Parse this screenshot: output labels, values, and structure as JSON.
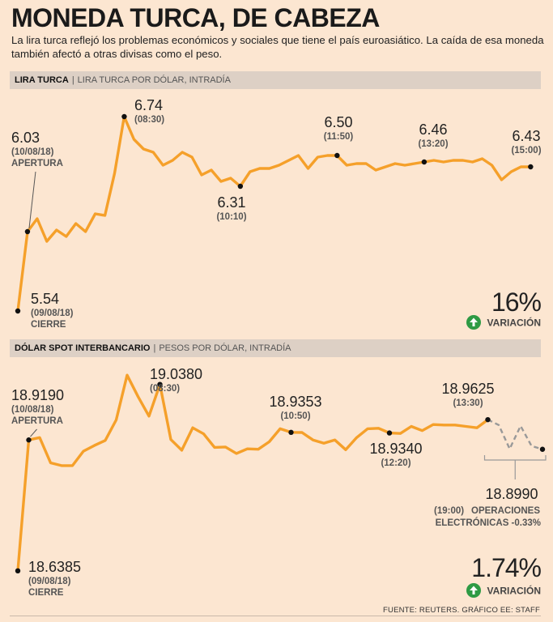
{
  "title": "MONEDA TURCA, DE CABEZA",
  "subtitle": "La lira turca reflejó los problemas económicos y sociales que tiene el país euroasiático. La caída de esa moneda también afectó a otras divisas como el peso.",
  "source": "FUENTE: REUTERS. GRÁFICO EE: STAFF",
  "colors": {
    "line": "#f5a02a",
    "dash": "#999999",
    "up": "#2e9a44",
    "band": "#ddd0c5"
  },
  "chart_data": [
    {
      "type": "line",
      "title": "LIRA TURCA",
      "unit_label": "LIRA TURCA POR DÓLAR, INTRADÍA",
      "ylim": [
        5.5,
        6.8
      ],
      "values": [
        5.54,
        6.03,
        6.11,
        5.97,
        6.04,
        6.0,
        6.08,
        6.03,
        6.14,
        6.13,
        6.39,
        6.74,
        6.6,
        6.54,
        6.52,
        6.44,
        6.47,
        6.52,
        6.49,
        6.38,
        6.41,
        6.34,
        6.36,
        6.31,
        6.4,
        6.42,
        6.42,
        6.44,
        6.47,
        6.5,
        6.42,
        6.49,
        6.5,
        6.5,
        6.44,
        6.45,
        6.45,
        6.41,
        6.43,
        6.45,
        6.44,
        6.45,
        6.46,
        6.47,
        6.46,
        6.47,
        6.47,
        6.46,
        6.48,
        6.44,
        6.35,
        6.4,
        6.43,
        6.43
      ],
      "annotations": [
        {
          "index": 0,
          "value": "5.54",
          "time": "(09/08/18)",
          "label": "CIERRE"
        },
        {
          "index": 1,
          "value": "6.03",
          "time": "(10/08/18)",
          "label": "APERTURA"
        },
        {
          "index": 11,
          "value": "6.74",
          "time": "(08:30)",
          "label": ""
        },
        {
          "index": 23,
          "value": "6.31",
          "time": "(10:10)",
          "label": ""
        },
        {
          "index": 33,
          "value": "6.50",
          "time": "(11:50)",
          "label": ""
        },
        {
          "index": 42,
          "value": "6.46",
          "time": "(13:20)",
          "label": ""
        },
        {
          "index": 53,
          "value": "6.43",
          "time": "(15:00)",
          "label": ""
        }
      ],
      "change": "16%",
      "change_label": "VARIACIÓN"
    },
    {
      "type": "line",
      "title": "DÓLAR SPOT INTERBANCARIO",
      "unit_label": "PESOS POR DÓLAR, INTRADÍA",
      "ylim": [
        18.6,
        19.06
      ],
      "values": [
        18.6385,
        18.919,
        18.924,
        18.87,
        18.864,
        18.864,
        18.895,
        18.907,
        18.918,
        18.962,
        19.058,
        19.012,
        18.97,
        19.038,
        18.92,
        18.897,
        18.945,
        18.932,
        18.903,
        18.904,
        18.89,
        18.9,
        18.899,
        18.915,
        18.943,
        18.9353,
        18.935,
        18.919,
        18.912,
        18.919,
        18.898,
        18.924,
        18.943,
        18.944,
        18.934,
        18.933,
        18.948,
        18.939,
        18.952,
        18.951,
        18.951,
        18.948,
        18.945,
        18.9625
      ],
      "dashed_values": [
        18.9625,
        18.951,
        18.9,
        18.949,
        18.906,
        18.899
      ],
      "annotations": [
        {
          "index": 0,
          "value": "18.6385",
          "time": "(09/08/18)",
          "label": "CIERRE"
        },
        {
          "index": 1,
          "value": "18.9190",
          "time": "(10/08/18)",
          "label": "APERTURA"
        },
        {
          "index": 13,
          "value": "19.0380",
          "time": "(08:30)",
          "label": ""
        },
        {
          "index": 25,
          "value": "18.9353",
          "time": "(10:50)",
          "label": ""
        },
        {
          "index": 34,
          "value": "18.9340",
          "time": "(12:20)",
          "label": ""
        },
        {
          "index": 43,
          "value": "18.9625",
          "time": "(13:30)",
          "label": ""
        }
      ],
      "after_hours": {
        "value": "18.8990",
        "time": "(19:00)",
        "label_line1": "OPERACIONES",
        "label_line2": "ELECTRÓNICAS -0.33%"
      },
      "change": "1.74%",
      "change_label": "VARIACIÓN"
    }
  ]
}
